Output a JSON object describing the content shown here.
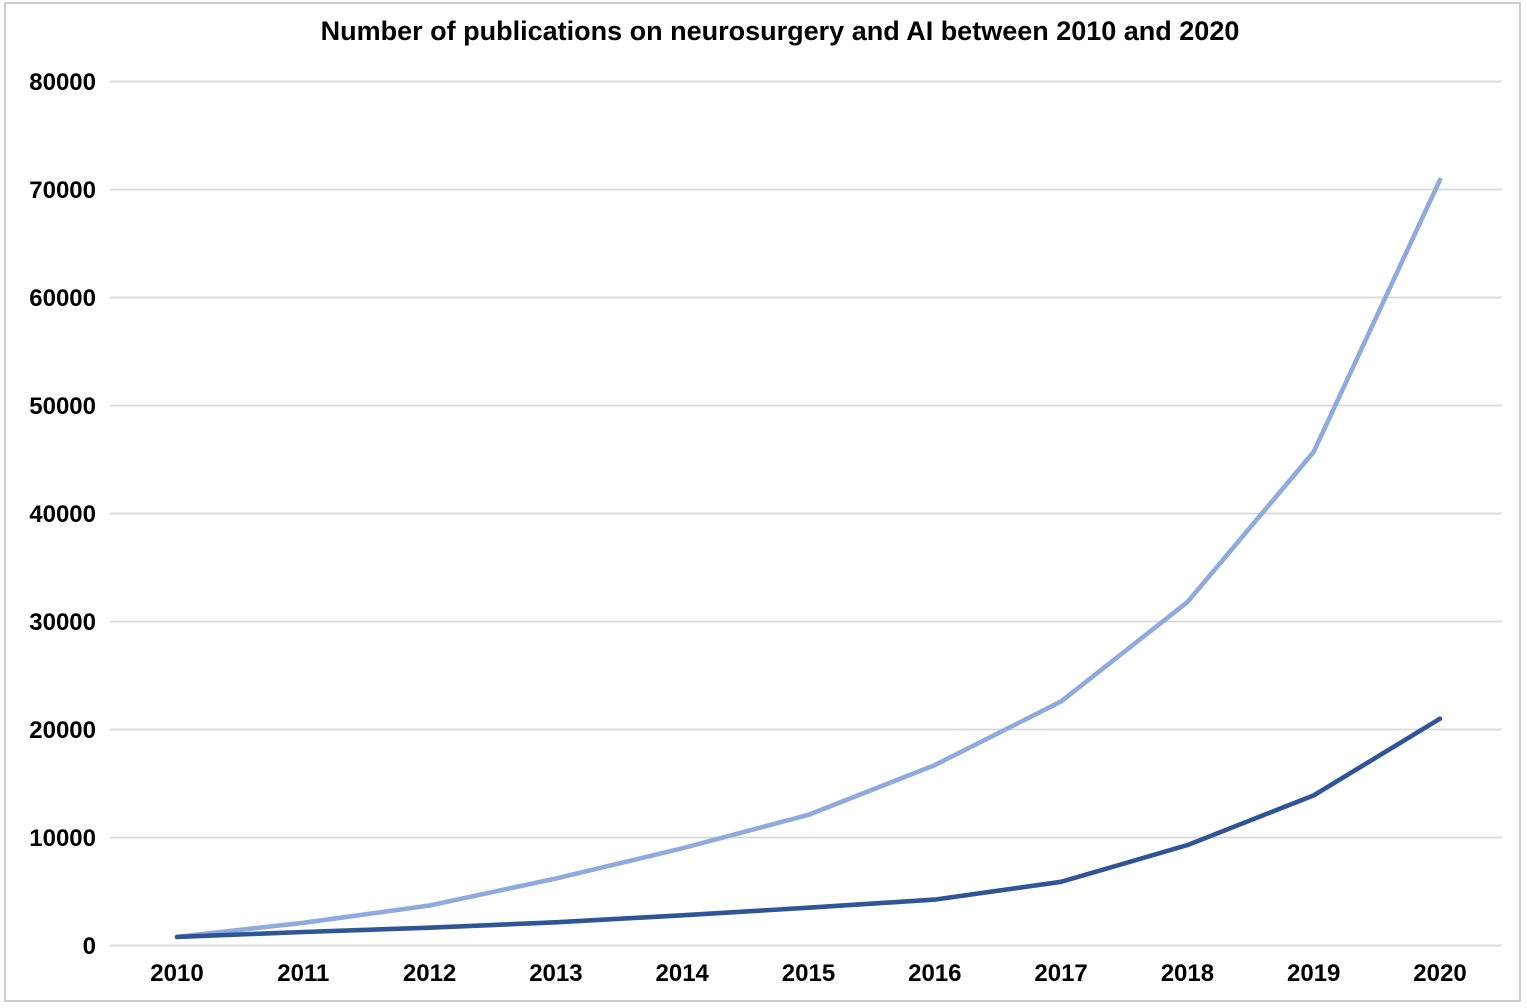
{
  "window": {
    "background_color": "#ffffff",
    "frame_border_color": "#caccce"
  },
  "chart_data": {
    "type": "line",
    "title": "Number of publications on neurosurgery and AI between 2010 and 2020",
    "xlabel": "",
    "ylabel": "",
    "categories": [
      "2010",
      "2011",
      "2012",
      "2013",
      "2014",
      "2015",
      "2016",
      "2017",
      "2018",
      "2019",
      "2020"
    ],
    "series": [
      {
        "name": "light-blue-line",
        "color": "#8FAADC",
        "values": [
          800,
          2100,
          3700,
          6200,
          9000,
          12100,
          16700,
          22600,
          31800,
          45700,
          70900
        ]
      },
      {
        "name": "dark-blue-line",
        "color": "#2F5597",
        "values": [
          800,
          1250,
          1650,
          2150,
          2800,
          3500,
          4250,
          5900,
          9300,
          13900,
          21000
        ]
      }
    ],
    "ylim": [
      0,
      80000
    ],
    "y_tick_labels": [
      "0",
      "10000",
      "20000",
      "30000",
      "40000",
      "50000",
      "60000",
      "70000",
      "80000"
    ],
    "y_tick_values": [
      0,
      10000,
      20000,
      30000,
      40000,
      50000,
      60000,
      70000,
      80000
    ],
    "grid": "horizontal",
    "gridline_color": "#D9D9D9",
    "text_color": "#000000",
    "legend_position": "none"
  }
}
